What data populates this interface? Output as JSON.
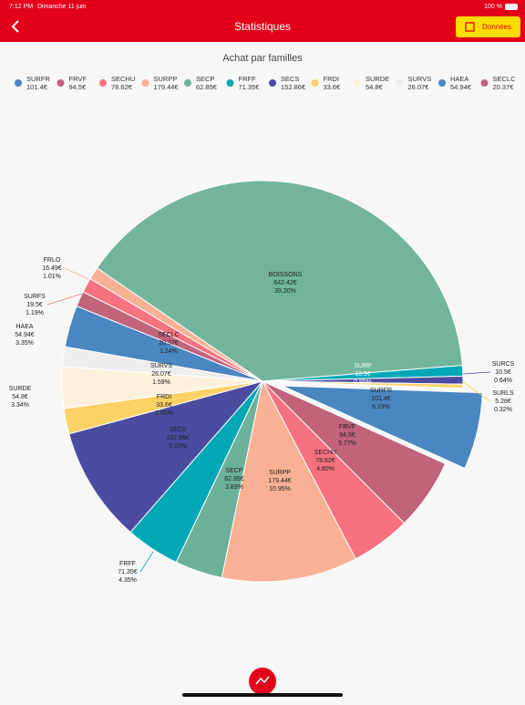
{
  "status_bar": {
    "time": "7:12 PM",
    "date": "Dimanche 11 juin",
    "battery": "100 %"
  },
  "nav": {
    "title": "Statistiques",
    "button": "Données"
  },
  "chart_data": {
    "type": "pie",
    "title": "Achat par familles",
    "categories": [
      "SURFR",
      "FRVF",
      "SECHU",
      "SURPP",
      "SECP",
      "FRFF",
      "SECS",
      "FRDI",
      "SURDE",
      "SURVS",
      "HAEA",
      "SECLC",
      "SURFS",
      "FRLO",
      "BOISSONS",
      "SURP",
      "SURCS",
      "SURLS"
    ],
    "values": [
      101.4,
      94.5,
      78.62,
      179.44,
      62.85,
      71.35,
      152.86,
      33.6,
      54.8,
      26.07,
      54.94,
      20.37,
      19.5,
      16.49,
      642.42,
      13.9,
      10.5,
      5.28
    ],
    "value_labels": [
      "101.4€",
      "94.5€",
      "78.62€",
      "179.44€",
      "62.85€",
      "71.35€",
      "152.86€",
      "33.6€",
      "54.8€",
      "26.07€",
      "54.94€",
      "20.37€",
      "19.5€",
      "16.49€",
      "642.42€",
      "13.9€",
      "10.5€",
      "5.28€"
    ],
    "percent_labels": [
      "6.19%",
      "5.77%",
      "4.80%",
      "10.95%",
      "3.83%",
      "4.35%",
      "9.33%",
      "2.05%",
      "3.34%",
      "1.59%",
      "3.35%",
      "1.24%",
      "1.19%",
      "1.01%",
      "39.20%",
      "0.85%",
      "0.64%",
      "0.32%"
    ],
    "colors": [
      "#4a86c0",
      "#c0637b",
      "#f5727e",
      "#f8b195",
      "#6cb29a",
      "#00a8b5",
      "#4b4ca0",
      "#fdd166",
      "#fdf0dc",
      "#eeeeee",
      "#4a86c0",
      "#c0637b",
      "#f5727e",
      "#f8b195",
      "#72b59b",
      "#00a8b5",
      "#4b4ca0",
      "#fdd166"
    ],
    "legend_count": 12
  }
}
